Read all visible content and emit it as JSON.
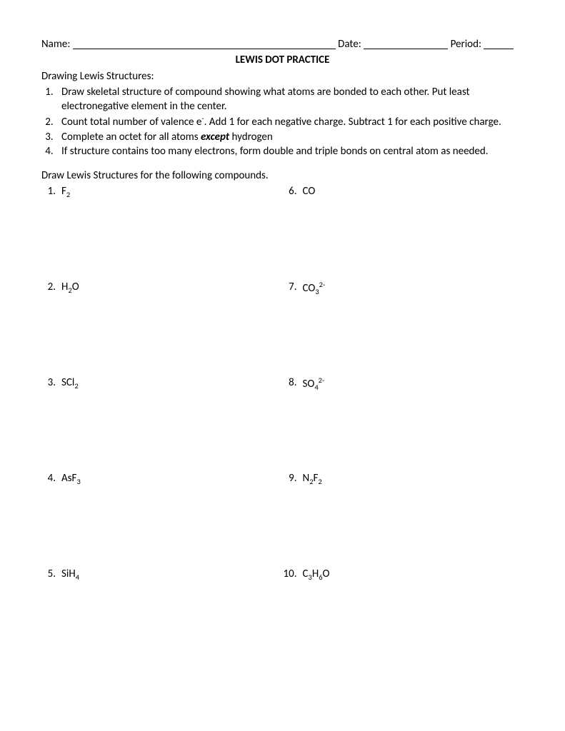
{
  "header": {
    "name_label": "Name:",
    "date_label": "Date:",
    "period_label": "Period:",
    "name_blank_width": 368,
    "date_blank_width": 118,
    "period_blank_width": 42
  },
  "title": "LEWIS DOT PRACTICE",
  "subtitle": "Drawing Lewis Structures:",
  "instructions": [
    {
      "text_before": "Draw skeletal structure of compound showing what atoms are bonded to each other.  Put least electronegative element in the center."
    },
    {
      "text_before": "Count total number of valence e",
      "sup": "-",
      "text_after": ".  Add 1 for each negative charge.  Subtract 1 for each positive charge."
    },
    {
      "text_before": "Complete an octet for all atoms ",
      "emph": "except",
      "text_after": " hydrogen"
    },
    {
      "text_before": "If structure contains too many electrons, form double and triple bonds on central atom as needed."
    }
  ],
  "compounds_prompt": "Draw Lewis Structures for the following compounds.",
  "compounds": {
    "left": [
      {
        "num": "1.",
        "base": "F",
        "sub": "2"
      },
      {
        "num": "2.",
        "base": "H",
        "sub": "2",
        "base2": "O"
      },
      {
        "num": "3.",
        "base": "SCl",
        "sub": "2"
      },
      {
        "num": "4.",
        "base": "AsF",
        "sub": "3"
      },
      {
        "num": "5.",
        "base": "SiH",
        "sub": "4"
      }
    ],
    "right": [
      {
        "num": "6.",
        "base": "CO"
      },
      {
        "num": "7.",
        "base": "CO",
        "sub": "3",
        "sup": "2-"
      },
      {
        "num": "8.",
        "base": "SO",
        "sub": "4",
        "sup": "2-"
      },
      {
        "num": "9.",
        "base": "N",
        "sub": "2",
        "base2": "F",
        "sub2": "2"
      },
      {
        "num": "10.",
        "base": "C",
        "sub": "3",
        "base2": "H",
        "sub2": "6",
        "base3": "O"
      }
    ]
  },
  "styles": {
    "background_color": "#ffffff",
    "text_color": "#000000",
    "font_family": "Calibri",
    "font_size": 15
  }
}
